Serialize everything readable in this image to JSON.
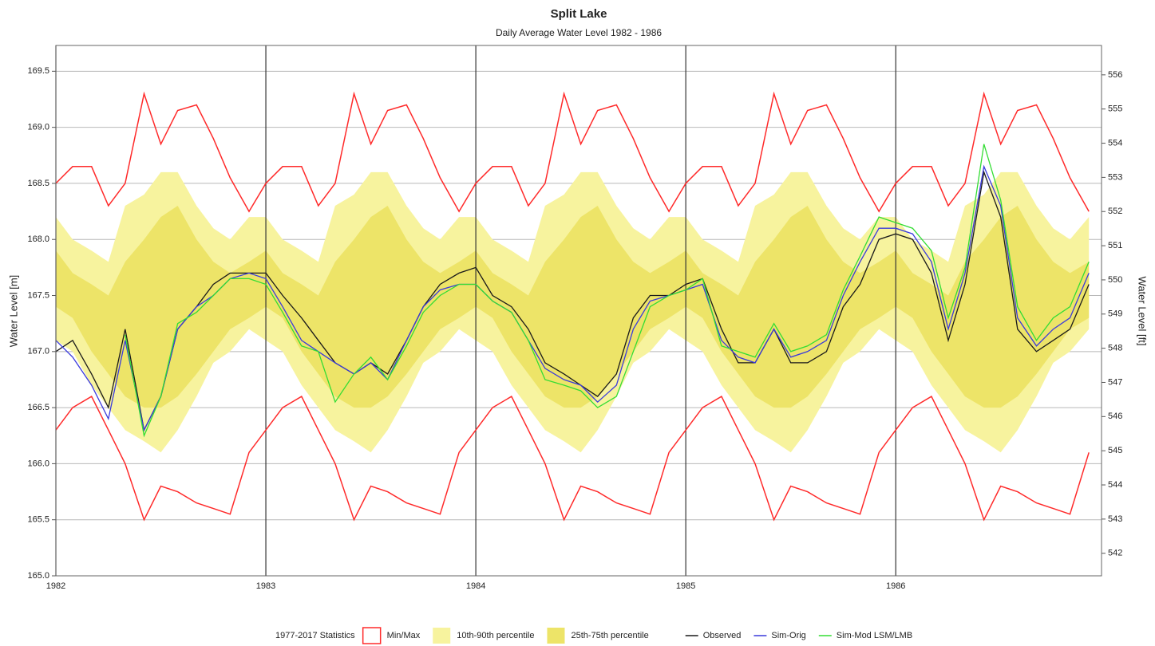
{
  "chart_data": {
    "type": "line",
    "title": "Split Lake",
    "subtitle": "Daily Average Water Level 1982 - 1986",
    "y_label": "Water Level [m]",
    "y2_label": "Water Level [ft]",
    "legend_title": "1977-2017 Statistics",
    "grid": true,
    "xlim": [
      1982,
      1986.98
    ],
    "xticks": [
      1982,
      1983,
      1984,
      1985,
      1986
    ],
    "ylim": [
      165.0,
      169.73
    ],
    "yticks": [
      {
        "value": 165,
        "label": "165.0"
      },
      {
        "value": 165.5,
        "label": "165.5"
      },
      {
        "value": 166,
        "label": "166.0"
      },
      {
        "value": 166.5,
        "label": "166.5"
      },
      {
        "value": 167,
        "label": "167.0"
      },
      {
        "value": 167.5,
        "label": "167.5"
      },
      {
        "value": 168,
        "label": "168.0"
      },
      {
        "value": 168.5,
        "label": "168.5"
      },
      {
        "value": 169,
        "label": "169.0"
      },
      {
        "value": 169.5,
        "label": "169.5"
      }
    ],
    "y2lim": [
      541.34,
      556.86
    ],
    "y2ticks": [
      542,
      543,
      544,
      545,
      546,
      547,
      548,
      549,
      550,
      551,
      552,
      553,
      554,
      555,
      556
    ],
    "x": [
      1982,
      1982.08,
      1982.17,
      1982.25,
      1982.33,
      1982.42,
      1982.5,
      1982.58,
      1982.67,
      1982.75,
      1982.83,
      1982.92,
      1983,
      1983.08,
      1983.17,
      1983.25,
      1983.33,
      1983.42,
      1983.5,
      1983.58,
      1983.67,
      1983.75,
      1983.83,
      1983.92,
      1984,
      1984.08,
      1984.17,
      1984.25,
      1984.33,
      1984.42,
      1984.5,
      1984.58,
      1984.67,
      1984.75,
      1984.83,
      1984.92,
      1985,
      1985.08,
      1985.17,
      1985.25,
      1985.33,
      1985.42,
      1985.5,
      1985.58,
      1985.67,
      1985.75,
      1985.83,
      1985.92,
      1986,
      1986.08,
      1986.17,
      1986.25,
      1986.33,
      1986.42,
      1986.5,
      1986.58,
      1986.67,
      1986.75,
      1986.83,
      1986.92
    ],
    "series": [
      {
        "name": "Min/Max",
        "kind": "minmax",
        "color": "#ff2a2a",
        "lower": [
          166.3,
          166.5,
          166.6,
          166.3,
          166.0,
          165.5,
          165.8,
          165.75,
          165.65,
          165.6,
          165.55,
          166.1,
          166.3,
          166.5,
          166.6,
          166.3,
          166.0,
          165.5,
          165.8,
          165.75,
          165.65,
          165.6,
          165.55,
          166.1,
          166.3,
          166.5,
          166.6,
          166.3,
          166.0,
          165.5,
          165.8,
          165.75,
          165.65,
          165.6,
          165.55,
          166.1,
          166.3,
          166.5,
          166.6,
          166.3,
          166.0,
          165.5,
          165.8,
          165.75,
          165.65,
          165.6,
          165.55,
          166.1,
          166.3,
          166.5,
          166.6,
          166.3,
          166.0,
          165.5,
          165.8,
          165.75,
          165.65,
          165.6,
          165.55,
          166.1
        ],
        "upper": [
          168.5,
          168.65,
          168.65,
          168.3,
          168.5,
          169.3,
          168.85,
          169.15,
          169.2,
          168.9,
          168.55,
          168.25,
          168.5,
          168.65,
          168.65,
          168.3,
          168.5,
          169.3,
          168.85,
          169.15,
          169.2,
          168.9,
          168.55,
          168.25,
          168.5,
          168.65,
          168.65,
          168.3,
          168.5,
          169.3,
          168.85,
          169.15,
          169.2,
          168.9,
          168.55,
          168.25,
          168.5,
          168.65,
          168.65,
          168.3,
          168.5,
          169.3,
          168.85,
          169.15,
          169.2,
          168.9,
          168.55,
          168.25,
          168.5,
          168.65,
          168.65,
          168.3,
          168.5,
          169.3,
          168.85,
          169.15,
          169.2,
          168.9,
          168.55,
          168.25
        ]
      },
      {
        "name": "10th-90th percentile",
        "kind": "band",
        "color": "#f7f39e",
        "lower": [
          167.1,
          167.0,
          166.7,
          166.5,
          166.3,
          166.2,
          166.1,
          166.3,
          166.6,
          166.9,
          167.0,
          167.2,
          167.1,
          167.0,
          166.7,
          166.5,
          166.3,
          166.2,
          166.1,
          166.3,
          166.6,
          166.9,
          167.0,
          167.2,
          167.1,
          167.0,
          166.7,
          166.5,
          166.3,
          166.2,
          166.1,
          166.3,
          166.6,
          166.9,
          167.0,
          167.2,
          167.1,
          167.0,
          166.7,
          166.5,
          166.3,
          166.2,
          166.1,
          166.3,
          166.6,
          166.9,
          167.0,
          167.2,
          167.1,
          167.0,
          166.7,
          166.5,
          166.3,
          166.2,
          166.1,
          166.3,
          166.6,
          166.9,
          167.0,
          167.2
        ],
        "upper": [
          168.2,
          168.0,
          167.9,
          167.8,
          168.3,
          168.4,
          168.6,
          168.6,
          168.3,
          168.1,
          168.0,
          168.2,
          168.2,
          168.0,
          167.9,
          167.8,
          168.3,
          168.4,
          168.6,
          168.6,
          168.3,
          168.1,
          168.0,
          168.2,
          168.2,
          168.0,
          167.9,
          167.8,
          168.3,
          168.4,
          168.6,
          168.6,
          168.3,
          168.1,
          168.0,
          168.2,
          168.2,
          168.0,
          167.9,
          167.8,
          168.3,
          168.4,
          168.6,
          168.6,
          168.3,
          168.1,
          168.0,
          168.2,
          168.2,
          168.0,
          167.9,
          167.8,
          168.3,
          168.4,
          168.6,
          168.6,
          168.3,
          168.1,
          168.0,
          168.2
        ]
      },
      {
        "name": "25th-75th percentile",
        "kind": "band",
        "color": "#ede468",
        "lower": [
          167.4,
          167.3,
          167.0,
          166.8,
          166.6,
          166.5,
          166.5,
          166.6,
          166.8,
          167.0,
          167.2,
          167.3,
          167.4,
          167.3,
          167.0,
          166.8,
          166.6,
          166.5,
          166.5,
          166.6,
          166.8,
          167.0,
          167.2,
          167.3,
          167.4,
          167.3,
          167.0,
          166.8,
          166.6,
          166.5,
          166.5,
          166.6,
          166.8,
          167.0,
          167.2,
          167.3,
          167.4,
          167.3,
          167.0,
          166.8,
          166.6,
          166.5,
          166.5,
          166.6,
          166.8,
          167.0,
          167.2,
          167.3,
          167.4,
          167.3,
          167.0,
          166.8,
          166.6,
          166.5,
          166.5,
          166.6,
          166.8,
          167.0,
          167.2,
          167.3
        ],
        "upper": [
          167.9,
          167.7,
          167.6,
          167.5,
          167.8,
          168.0,
          168.2,
          168.3,
          168.0,
          167.8,
          167.7,
          167.8,
          167.9,
          167.7,
          167.6,
          167.5,
          167.8,
          168.0,
          168.2,
          168.3,
          168.0,
          167.8,
          167.7,
          167.8,
          167.9,
          167.7,
          167.6,
          167.5,
          167.8,
          168.0,
          168.2,
          168.3,
          168.0,
          167.8,
          167.7,
          167.8,
          167.9,
          167.7,
          167.6,
          167.5,
          167.8,
          168.0,
          168.2,
          168.3,
          168.0,
          167.8,
          167.7,
          167.8,
          167.9,
          167.7,
          167.6,
          167.5,
          167.8,
          168.0,
          168.2,
          168.3,
          168.0,
          167.8,
          167.7,
          167.8
        ]
      },
      {
        "name": "Observed",
        "kind": "line",
        "color": "#1a1a1a",
        "values": [
          167.0,
          167.1,
          166.8,
          166.5,
          167.2,
          166.3,
          166.6,
          167.2,
          167.4,
          167.6,
          167.7,
          167.7,
          167.7,
          167.5,
          167.3,
          167.1,
          166.9,
          166.8,
          166.9,
          166.8,
          167.1,
          167.4,
          167.6,
          167.7,
          167.75,
          167.5,
          167.4,
          167.2,
          166.9,
          166.8,
          166.7,
          166.6,
          166.8,
          167.3,
          167.5,
          167.5,
          167.6,
          167.65,
          167.2,
          166.9,
          166.9,
          167.2,
          166.9,
          166.9,
          167.0,
          167.4,
          167.6,
          168.0,
          168.05,
          168.0,
          167.7,
          167.1,
          167.6,
          168.6,
          168.2,
          167.2,
          167.0,
          167.1,
          167.2,
          167.6
        ]
      },
      {
        "name": "Sim-Orig",
        "kind": "line",
        "color": "#3a3adc",
        "values": [
          167.1,
          166.95,
          166.7,
          166.4,
          167.1,
          166.3,
          166.6,
          167.2,
          167.4,
          167.5,
          167.65,
          167.7,
          167.65,
          167.4,
          167.1,
          167.0,
          166.9,
          166.8,
          166.9,
          166.75,
          167.1,
          167.4,
          167.55,
          167.6,
          167.6,
          167.45,
          167.35,
          167.1,
          166.85,
          166.75,
          166.7,
          166.55,
          166.7,
          167.2,
          167.45,
          167.5,
          167.55,
          167.6,
          167.1,
          166.95,
          166.9,
          167.2,
          166.95,
          167.0,
          167.1,
          167.5,
          167.8,
          168.1,
          168.1,
          168.05,
          167.8,
          167.2,
          167.7,
          168.65,
          168.3,
          167.3,
          167.05,
          167.2,
          167.3,
          167.7
        ]
      },
      {
        "name": "Sim-Mod LSM/LMB",
        "kind": "line",
        "color": "#33dd33",
        "values": [
          null,
          null,
          null,
          null,
          167.15,
          166.25,
          166.6,
          167.25,
          167.35,
          167.5,
          167.65,
          167.65,
          167.6,
          167.35,
          167.05,
          167.0,
          166.55,
          166.8,
          166.95,
          166.75,
          167.05,
          167.35,
          167.5,
          167.6,
          167.6,
          167.45,
          167.35,
          167.1,
          166.75,
          166.7,
          166.65,
          166.5,
          166.6,
          167.0,
          167.4,
          167.5,
          167.55,
          167.65,
          167.05,
          167.0,
          166.95,
          167.25,
          167.0,
          167.05,
          167.15,
          167.55,
          167.85,
          168.2,
          168.15,
          168.1,
          167.9,
          167.3,
          167.75,
          168.85,
          168.35,
          167.4,
          167.1,
          167.3,
          167.4,
          167.8
        ]
      }
    ]
  }
}
